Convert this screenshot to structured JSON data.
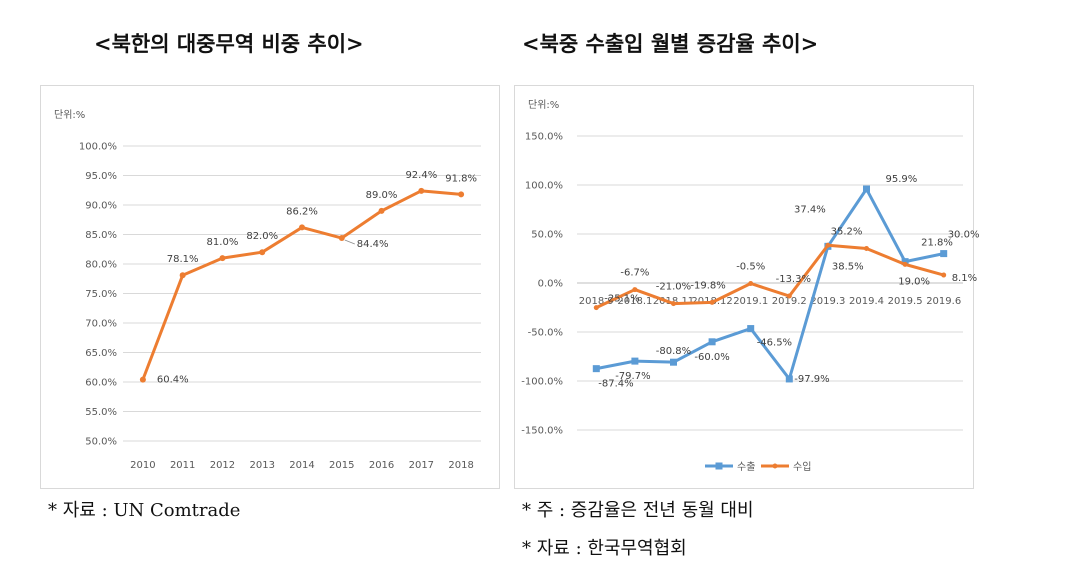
{
  "titles": {
    "left": "<북한의 대중무역 비중 추이>",
    "right": "<북중 수출입 월별 증감율 추이>"
  },
  "notes": {
    "left_source": "* 자료 : UN Comtrade",
    "right_note": "* 주 : 증감율은 전년 동월 대비",
    "right_source": "* 자료 : 한국무역협회"
  },
  "colors": {
    "orange": "#ED7D31",
    "blue": "#5B9BD5",
    "grid": "#D9D9D9"
  },
  "chart_data": [
    {
      "type": "line",
      "title": "<북한의 대중무역 비중 추이>",
      "unit_label": "단위:%",
      "categories": [
        "2010",
        "2011",
        "2012",
        "2013",
        "2014",
        "2015",
        "2016",
        "2017",
        "2018"
      ],
      "series": [
        {
          "values": [
            60.4,
            78.1,
            81.0,
            82.0,
            86.2,
            84.4,
            89.0,
            92.4,
            91.8
          ],
          "labels": [
            "60.4%",
            "78.1%",
            "81.0%",
            "82.0%",
            "86.2%",
            "84.4%",
            "89.0%",
            "92.4%",
            "91.8%"
          ]
        }
      ],
      "ylim": [
        50,
        100
      ],
      "yticks": [
        "50.0%",
        "55.0%",
        "60.0%",
        "65.0%",
        "70.0%",
        "75.0%",
        "80.0%",
        "85.0%",
        "90.0%",
        "95.0%",
        "100.0%"
      ],
      "grid": true
    },
    {
      "type": "line",
      "title": "<북중 수출입 월별 증감율 추이>",
      "unit_label": "단위:%",
      "categories": [
        "2018.9",
        "2018.1",
        "2018.11",
        "2018.12",
        "2019.1",
        "2019.2",
        "2019.3",
        "2019.4",
        "2019.5",
        "2019.6"
      ],
      "series": [
        {
          "name": "수출",
          "values": [
            -87.4,
            -79.7,
            -80.8,
            -60.0,
            -46.5,
            -97.9,
            37.4,
            95.9,
            21.8,
            30.0
          ],
          "labels": [
            "-87.4%",
            "-79.7%",
            "-80.8%",
            "-60.0%",
            "-46.5%",
            "-97.9%",
            "37.4%",
            "95.9%",
            "21.8%",
            "30.0%"
          ]
        },
        {
          "name": "수입",
          "values": [
            -25.1,
            -6.7,
            -21.0,
            -19.8,
            -0.5,
            -13.3,
            38.5,
            35.2,
            19.0,
            8.1
          ],
          "labels": [
            "-25.1%",
            "-6.7%",
            "-21.0%",
            "-19.8%",
            "-0.5%",
            "-13.3%",
            "38.5%",
            "35.2%",
            "19.0%",
            "8.1%"
          ]
        }
      ],
      "ylim": [
        -150,
        150
      ],
      "yticks": [
        "-150.0%",
        "-100.0%",
        "-50.0%",
        "0.0%",
        "50.0%",
        "100.0%",
        "150.0%"
      ],
      "legend": "bottom",
      "grid": true
    }
  ]
}
